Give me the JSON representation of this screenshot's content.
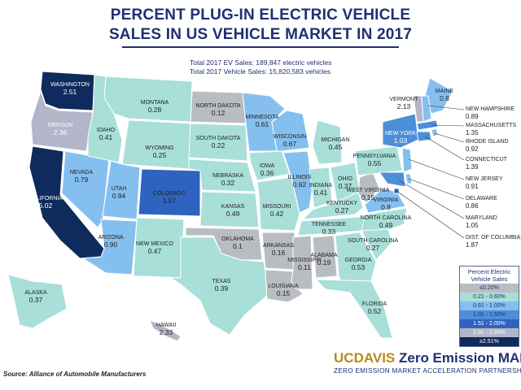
{
  "title": {
    "line1": "PERCENT PLUG-IN ELECTRIC VEHICLE",
    "line2": "SALES IN US VEHICLE MARKET IN 2017"
  },
  "totals": {
    "ev_sales": "Total 2017 EV Sales: 189,847 electric vehicles",
    "vehicle_sales": "Total 2017 Vehicle Sales: 15,820,583 vehicles"
  },
  "colors": {
    "c1": "#b9bcc0",
    "c2": "#a8dfd8",
    "c3": "#85bff0",
    "c4": "#4d8fd6",
    "c5": "#2f63c0",
    "c6": "#b3b6c9",
    "c7": "#0f2a5c"
  },
  "legend": {
    "title": "Percent Electric Vehicle Sales",
    "bins": [
      {
        "label": "≤0.20%",
        "color": "#b9bcc0"
      },
      {
        "label": "0.21 - 0.60%",
        "color": "#a8dfd8"
      },
      {
        "label": "0.61 - 1.00%",
        "color": "#85bff0"
      },
      {
        "label": "1.01 - 1.50%",
        "color": "#4d8fd6"
      },
      {
        "label": "1.51 - 2.00%",
        "color": "#2f63c0"
      },
      {
        "label": "2.01 - 2.50%",
        "color": "#b3b6c9"
      },
      {
        "label": "≥2.51%",
        "color": "#0f2a5c"
      }
    ]
  },
  "states": [
    {
      "name": "WASHINGTON",
      "value": "2.51"
    },
    {
      "name": "OREGON",
      "value": "2.36"
    },
    {
      "name": "CALIFORNIA",
      "value": "5.02"
    },
    {
      "name": "NEVADA",
      "value": "0.79"
    },
    {
      "name": "IDAHO",
      "value": "0.41"
    },
    {
      "name": "MONTANA",
      "value": "0.28"
    },
    {
      "name": "WYOMING",
      "value": "0.25"
    },
    {
      "name": "UTAH",
      "value": "0.94"
    },
    {
      "name": "ARIZONA",
      "value": "0.90"
    },
    {
      "name": "COLORADO",
      "value": "1.57"
    },
    {
      "name": "NEW MEXICO",
      "value": "0.47"
    },
    {
      "name": "NORTH DAKOTA",
      "value": "0.12"
    },
    {
      "name": "SOUTH DAKOTA",
      "value": "0.22"
    },
    {
      "name": "NEBRASKA",
      "value": "0.32"
    },
    {
      "name": "KANSAS",
      "value": "0.49"
    },
    {
      "name": "OKLAHOMA",
      "value": "0.1"
    },
    {
      "name": "TEXAS",
      "value": "0.39"
    },
    {
      "name": "MINNESOTA",
      "value": "0.61"
    },
    {
      "name": "IOWA",
      "value": "0.36"
    },
    {
      "name": "MISSOURI",
      "value": "0.42"
    },
    {
      "name": "ARKANSAS",
      "value": "0.16"
    },
    {
      "name": "LOUISIANA",
      "value": "0.15"
    },
    {
      "name": "WISCONSIN",
      "value": "0.67"
    },
    {
      "name": "ILLINOIS",
      "value": "0.62"
    },
    {
      "name": "MISSISSIPPI",
      "value": "0.11"
    },
    {
      "name": "MICHIGAN",
      "value": "0.45"
    },
    {
      "name": "INDIANA",
      "value": "0.41"
    },
    {
      "name": "KENTUCKY",
      "value": "0.27"
    },
    {
      "name": "TENNESSEE",
      "value": "0.33"
    },
    {
      "name": "ALABAMA",
      "value": "0.19"
    },
    {
      "name": "OHIO",
      "value": "0.37"
    },
    {
      "name": "WEST VIRGINIA",
      "value": "0.15"
    },
    {
      "name": "GEORGIA",
      "value": "0.53"
    },
    {
      "name": "FLORIDA",
      "value": "0.52"
    },
    {
      "name": "SOUTH CAROLINA",
      "value": "0.27"
    },
    {
      "name": "NORTH CAROLINA",
      "value": "0.49"
    },
    {
      "name": "VIRGINIA",
      "value": "0.8"
    },
    {
      "name": "PENNSYLVANIA",
      "value": "0.55"
    },
    {
      "name": "NEW YORK",
      "value": "1.03"
    },
    {
      "name": "VERMONT",
      "value": "2.13"
    },
    {
      "name": "MAINE",
      "value": "0.8"
    },
    {
      "name": "ALASKA",
      "value": "0.37"
    },
    {
      "name": "HAWAII",
      "value": "2.33"
    }
  ],
  "callouts": [
    {
      "name": "NEW HAMPSHIRE",
      "value": "0.89"
    },
    {
      "name": "MASSACHUSETTS",
      "value": "1.35"
    },
    {
      "name": "RHODE ISLAND",
      "value": "0.92"
    },
    {
      "name": "CONNECTICUT",
      "value": "1.39"
    },
    {
      "name": "NEW JERSEY",
      "value": "0.91"
    },
    {
      "name": "DELAWARE",
      "value": "0.86"
    },
    {
      "name": "MARYLAND",
      "value": "1.05"
    },
    {
      "name": "DIST. OF COLUMBIA",
      "value": "1.87"
    }
  ],
  "source": "Source: Alliance of Automobile Manufacturers",
  "brand": {
    "uc": "UC",
    "davis": "DAVIS",
    "rest": " Zero Emission MAP",
    "tagline": "ZERO EMISSION MARKET ACCELERATION PARTNERSHIPS"
  }
}
